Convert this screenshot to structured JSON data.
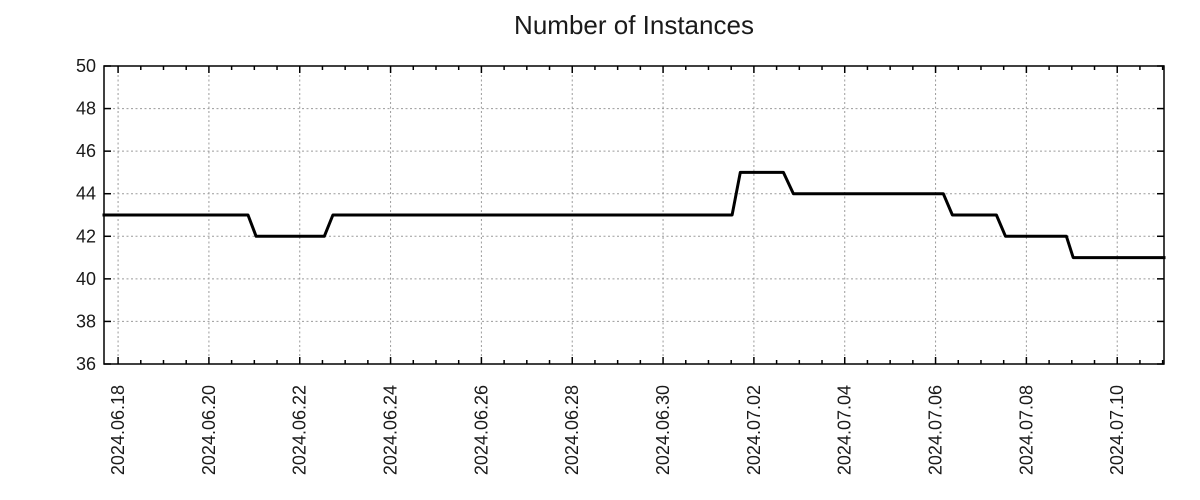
{
  "chart_data": {
    "type": "line",
    "subtype": "step",
    "title": "Number of Instances",
    "legend": "none",
    "background": "#ffffff",
    "grid_style": "dotted, at major ticks only",
    "grid_color": "#9b9b9b",
    "axis_color": "#000000",
    "text_color": "#1a1a1a",
    "ylim": [
      36,
      50
    ],
    "y_ticks": [
      36,
      38,
      40,
      42,
      44,
      46,
      48,
      50
    ],
    "x_range_days": [
      -0.31,
      23.03
    ],
    "x_tick_positions_days": [
      0,
      2,
      4,
      6,
      8,
      10,
      12,
      14,
      16,
      18,
      20,
      22
    ],
    "x_tick_labels": [
      "2024.06.18",
      "2024.06.20",
      "2024.06.22",
      "2024.06.24",
      "2024.06.26",
      "2024.06.28",
      "2024.06.30",
      "2024.07.02",
      "2024.07.04",
      "2024.07.06",
      "2024.07.08",
      "2024.07.10"
    ],
    "x_minor_tick_interval_days": 0.5,
    "series": [
      {
        "name": "instances",
        "color": "#000000",
        "points_day_value": [
          [
            -0.31,
            43
          ],
          [
            2.86,
            43
          ],
          [
            3.04,
            42
          ],
          [
            4.54,
            42
          ],
          [
            4.73,
            43
          ],
          [
            13.52,
            43
          ],
          [
            13.7,
            45
          ],
          [
            14.65,
            45
          ],
          [
            14.87,
            44
          ],
          [
            18.17,
            44
          ],
          [
            18.37,
            43
          ],
          [
            19.34,
            43
          ],
          [
            19.54,
            42
          ],
          [
            20.88,
            42
          ],
          [
            21.03,
            41
          ],
          [
            23.03,
            41
          ]
        ]
      }
    ],
    "segments_readable": [
      {
        "value": 43,
        "from": "left edge (~2024.06.17 17h)",
        "to": "~2024.06.20 21h"
      },
      {
        "value": 42,
        "from": "~2024.06.21 01h",
        "to": "~2024.06.22 13h"
      },
      {
        "value": 43,
        "from": "~2024.06.22 17h",
        "to": "~2024.07.01 12h"
      },
      {
        "value": 45,
        "from": "~2024.07.01 17h",
        "to": "~2024.07.02 16h"
      },
      {
        "value": 44,
        "from": "~2024.07.02 21h",
        "to": "~2024.07.06 04h"
      },
      {
        "value": 43,
        "from": "~2024.07.06 09h",
        "to": "~2024.07.07 08h"
      },
      {
        "value": 42,
        "from": "~2024.07.07 13h",
        "to": "~2024.07.08 21h"
      },
      {
        "value": 41,
        "from": "~2024.07.09 01h",
        "to": "right edge (~2024.07.11 01h)"
      }
    ]
  }
}
